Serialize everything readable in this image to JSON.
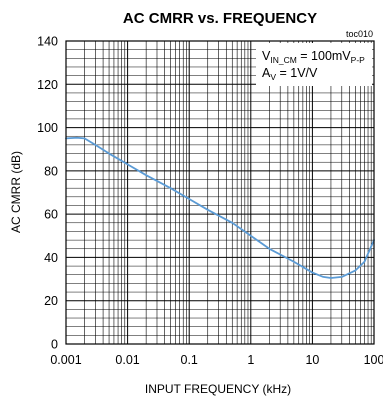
{
  "chart_data": {
    "type": "line",
    "title": "AC CMRR vs. FREQUENCY",
    "figure_id": "toc010",
    "xlabel": "INPUT FREQUENCY (kHz)",
    "ylabel": "AC CMRR (dB)",
    "x_scale": "log",
    "xlim": [
      0.001,
      100
    ],
    "ylim": [
      0,
      140
    ],
    "x_ticks": [
      "0.001",
      "0.01",
      "0.1",
      "1",
      "10",
      "100"
    ],
    "y_ticks": [
      "0",
      "20",
      "40",
      "60",
      "80",
      "100",
      "120",
      "140"
    ],
    "grid": true,
    "annotation": {
      "line1_main": "V",
      "line1_sub": "IN_CM",
      "line1_rest": " = 100mV",
      "line1_sub2": "P-P",
      "line2_main": "A",
      "line2_sub": "V",
      "line2_rest": " = 1V/V"
    },
    "series": [
      {
        "color": "#5b9bd5",
        "x": [
          0.001,
          0.0015,
          0.002,
          0.003,
          0.005,
          0.01,
          0.02,
          0.05,
          0.1,
          0.2,
          0.5,
          1,
          2,
          5,
          10,
          15,
          20,
          30,
          50,
          70,
          100
        ],
        "y": [
          95,
          95.3,
          95,
          92,
          88,
          83,
          78,
          72,
          67,
          62,
          56,
          50,
          44,
          38,
          33,
          31,
          30.5,
          31,
          34,
          38,
          48
        ]
      }
    ]
  }
}
